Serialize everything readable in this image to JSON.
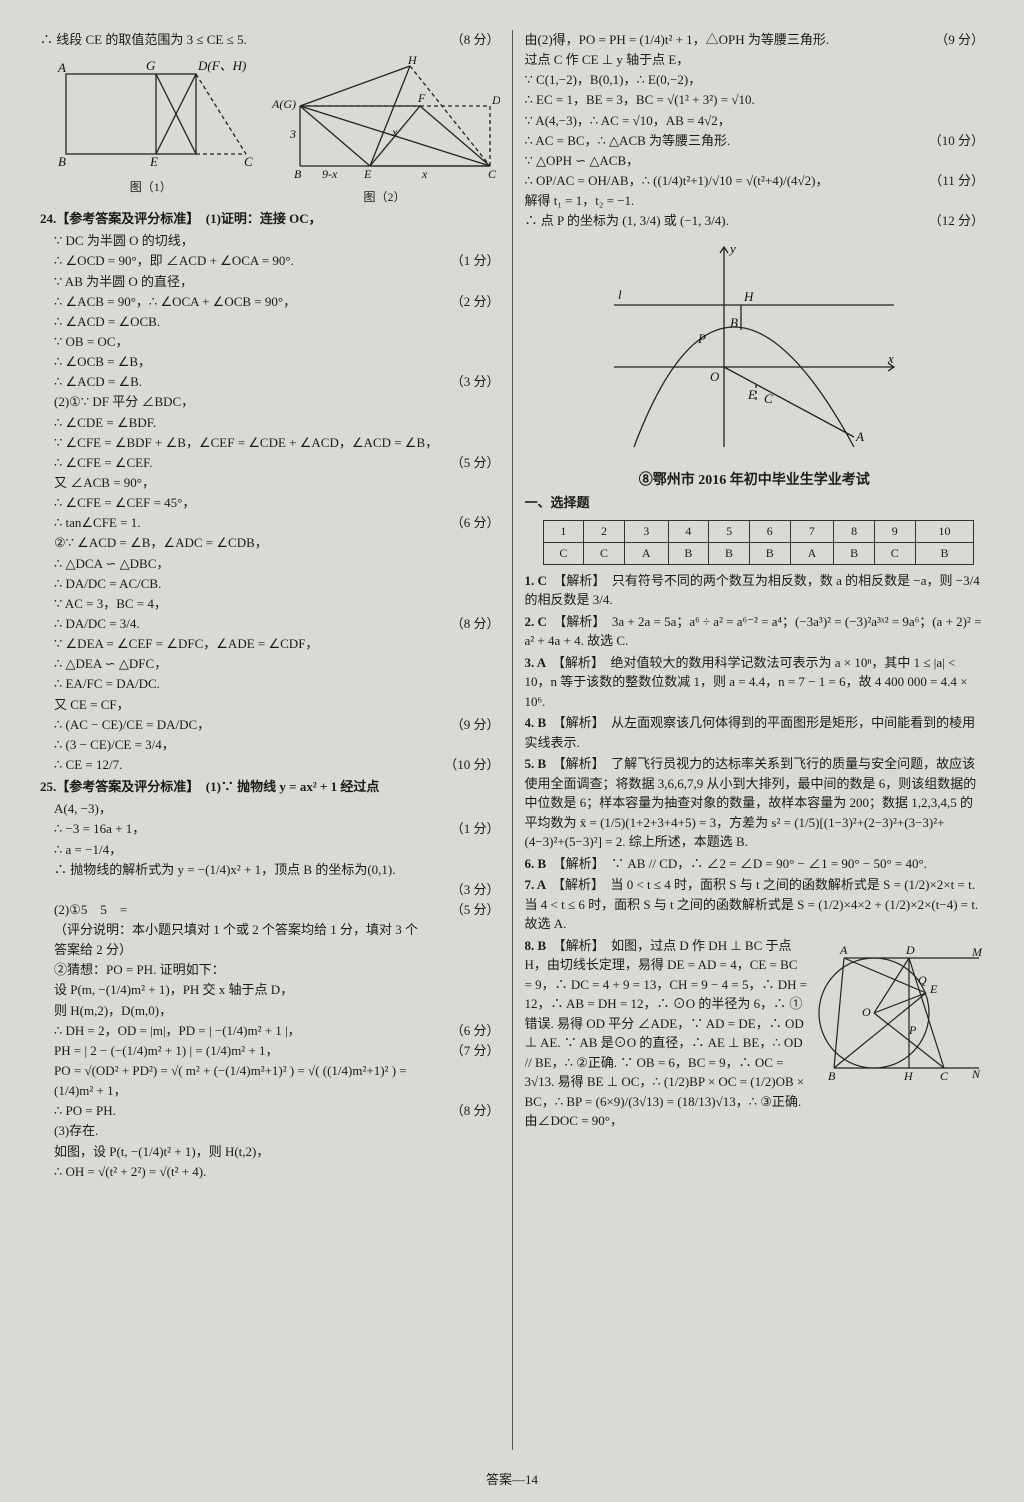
{
  "footer": "答案—14",
  "left": {
    "top_line": "∴ 线段 CE 的取值范围为 3 ≤ CE ≤ 5.",
    "top_score": "（8 分）",
    "fig1": {
      "points": {
        "A": "A",
        "B": "B",
        "C": "C",
        "D": "D(F、H)",
        "E": "E",
        "G": "G"
      },
      "label": "图（1）",
      "stroke": "#222222",
      "dash": "4,3"
    },
    "fig2": {
      "points": {
        "A": "A(G)",
        "B": "B",
        "C": "C",
        "D": "D",
        "E": "E",
        "F": "F",
        "H": "H"
      },
      "seg_labels": {
        "three": "3",
        "nine_minus_x": "9-x",
        "x1": "x",
        "x2": "x"
      },
      "label": "图（2）",
      "stroke": "#222222",
      "dash": "4,3"
    },
    "q24": {
      "head": "24.【参考答案及评分标准】　(1)证明：连接 OC，",
      "lines": [
        {
          "t": "∵ DC 为半圆 O 的切线，",
          "s": ""
        },
        {
          "t": "∴ ∠OCD = 90°，即 ∠ACD + ∠OCA = 90°.",
          "s": "（1 分）"
        },
        {
          "t": "∵ AB 为半圆 O 的直径，",
          "s": ""
        },
        {
          "t": "∴ ∠ACB = 90°，∴ ∠OCA + ∠OCB = 90°，",
          "s": "（2 分）"
        },
        {
          "t": "∴ ∠ACD = ∠OCB.",
          "s": ""
        },
        {
          "t": "∵ OB = OC，",
          "s": ""
        },
        {
          "t": "∴ ∠OCB = ∠B，",
          "s": ""
        },
        {
          "t": "∴ ∠ACD = ∠B.",
          "s": "（3 分）"
        },
        {
          "t": "(2)①∵ DF 平分 ∠BDC，",
          "s": ""
        },
        {
          "t": "∴ ∠CDE = ∠BDF.",
          "s": ""
        },
        {
          "t": "∵ ∠CFE = ∠BDF + ∠B，∠CEF = ∠CDE + ∠ACD，∠ACD = ∠B，",
          "s": ""
        },
        {
          "t": "∴ ∠CFE = ∠CEF.",
          "s": "（5 分）"
        },
        {
          "t": "又 ∠ACB = 90°，",
          "s": ""
        },
        {
          "t": "∴ ∠CFE = ∠CEF = 45°，",
          "s": ""
        },
        {
          "t": "∴ tan∠CFE = 1.",
          "s": "（6 分）"
        },
        {
          "t": "②∵ ∠ACD = ∠B，∠ADC = ∠CDB，",
          "s": ""
        },
        {
          "t": "∴ △DCA ∽ △DBC，",
          "s": ""
        },
        {
          "t": "∴ DA/DC = AC/CB.",
          "s": ""
        },
        {
          "t": "∵ AC = 3，BC = 4，",
          "s": ""
        },
        {
          "t": "∴ DA/DC = 3/4.",
          "s": "（8 分）"
        },
        {
          "t": "∵ ∠DEA = ∠CEF = ∠DFC，∠ADE = ∠CDF，",
          "s": ""
        },
        {
          "t": "∴ △DEA ∽ △DFC，",
          "s": ""
        },
        {
          "t": "∴ EA/FC = DA/DC.",
          "s": ""
        },
        {
          "t": "又 CE = CF，",
          "s": ""
        },
        {
          "t": "∴ (AC − CE)/CE = DA/DC，",
          "s": "（9 分）"
        },
        {
          "t": "∴ (3 − CE)/CE = 3/4，",
          "s": ""
        },
        {
          "t": "∴ CE = 12/7.",
          "s": "（10 分）"
        }
      ]
    },
    "q25": {
      "head": "25.【参考答案及评分标准】　(1)∵ 抛物线 y = ax² + 1 经过点",
      "lines": [
        {
          "t": "A(4, −3)，",
          "s": ""
        },
        {
          "t": "∴ −3 = 16a + 1，",
          "s": "（1 分）"
        },
        {
          "t": "∴ a = −1/4，",
          "s": ""
        },
        {
          "t": "∴ 抛物线的解析式为 y = −(1/4)x² + 1，顶点 B 的坐标为(0,1).",
          "s": ""
        },
        {
          "t": "",
          "s": "（3 分）"
        },
        {
          "t": "(2)①5　5　=",
          "s": "（5 分）"
        },
        {
          "t": "（评分说明：本小题只填对 1 个或 2 个答案均给 1 分，填对 3 个",
          "s": ""
        },
        {
          "t": "答案给 2 分）",
          "s": ""
        },
        {
          "t": "②猜想：PO = PH. 证明如下：",
          "s": ""
        },
        {
          "t": "设 P(m, −(1/4)m² + 1)，PH 交 x 轴于点 D，",
          "s": ""
        },
        {
          "t": "则 H(m,2)，D(m,0)，",
          "s": ""
        },
        {
          "t": "∴ DH = 2，OD = |m|，PD = | −(1/4)m² + 1 |，",
          "s": "（6 分）"
        },
        {
          "t": "PH = | 2 − (−(1/4)m² + 1) | = (1/4)m² + 1，",
          "s": "（7 分）"
        },
        {
          "t": "PO = √(OD² + PD²) = √( m² + (−(1/4)m²+1)² ) = √( ((1/4)m²+1)² ) =",
          "s": ""
        },
        {
          "t": "(1/4)m² + 1，",
          "s": ""
        },
        {
          "t": "∴ PO = PH.",
          "s": "（8 分）"
        },
        {
          "t": "(3)存在.",
          "s": ""
        },
        {
          "t": "如图，设 P(t, −(1/4)t² + 1)，则 H(t,2)，",
          "s": ""
        },
        {
          "t": "∴ OH = √(t² + 2²) = √(t² + 4).",
          "s": ""
        }
      ]
    }
  },
  "right": {
    "top_lines": [
      {
        "t": "由(2)得，PO = PH = (1/4)t² + 1，△OPH 为等腰三角形.",
        "s": "（9 分）"
      },
      {
        "t": "过点 C 作 CE ⊥ y 轴于点 E，",
        "s": ""
      },
      {
        "t": "∵ C(1,−2)，B(0,1)，∴ E(0,−2)，",
        "s": ""
      },
      {
        "t": "∴ EC = 1，BE = 3，BC = √(1² + 3²) = √10.",
        "s": ""
      },
      {
        "t": "∵ A(4,−3)，∴ AC = √10，AB = 4√2，",
        "s": ""
      },
      {
        "t": "∴ AC = BC，∴ △ACB 为等腰三角形.",
        "s": "（10 分）"
      },
      {
        "t": "∵ △OPH ∽ △ACB，",
        "s": ""
      },
      {
        "t": "∴ OP/AC = OH/AB，∴ ((1/4)t²+1)/√10 = √(t²+4)/(4√2)，",
        "s": "（11 分）"
      },
      {
        "t": "解得 t₁ = 1，t₂ = −1.",
        "s": ""
      },
      {
        "t": "∴ 点 P 的坐标为 (1, 3/4) 或 (−1, 3/4).",
        "s": "（12 分）"
      }
    ],
    "parabola_fig": {
      "labels": {
        "l": "l",
        "H": "H",
        "B": "B",
        "P": "P",
        "O": "O",
        "E": "E",
        "C": "C",
        "A": "A",
        "x": "x",
        "y": "y"
      },
      "stroke": "#222222"
    },
    "exam_title": "⑧鄂州市 2016 年初中毕业生学业考试",
    "section1": "一、选择题",
    "answer_table": {
      "nums": [
        "1",
        "2",
        "3",
        "4",
        "5",
        "6",
        "7",
        "8",
        "9",
        "10"
      ],
      "vals": [
        "C",
        "C",
        "A",
        "B",
        "B",
        "B",
        "A",
        "B",
        "C",
        "B"
      ]
    },
    "analyses": [
      {
        "n": "1. C",
        "t": "【解析】　只有符号不同的两个数互为相反数，数 a 的相反数是 −a，则 −3/4 的相反数是 3/4."
      },
      {
        "n": "2. C",
        "t": "【解析】　3a + 2a = 5a；a⁶ ÷ a² = a⁶⁻² = a⁴；(−3a³)² = (−3)²a³ˣ² = 9a⁶；(a + 2)² = a² + 4a + 4. 故选 C."
      },
      {
        "n": "3. A",
        "t": "【解析】　绝对值较大的数用科学记数法可表示为 a × 10ⁿ，其中 1 ≤ |a| < 10，n 等于该数的整数位数减 1，则 a = 4.4，n = 7 − 1 = 6，故 4 400 000 = 4.4 × 10⁶."
      },
      {
        "n": "4. B",
        "t": "【解析】　从左面观察该几何体得到的平面图形是矩形，中间能看到的棱用实线表示."
      },
      {
        "n": "5. B",
        "t": "【解析】　了解飞行员视力的达标率关系到飞行的质量与安全问题，故应该使用全面调查；将数据 3,6,6,7,9 从小到大排列，最中间的数是 6，则该组数据的中位数是 6；样本容量为抽查对象的数量，故样本容量为 200；数据 1,2,3,4,5 的平均数为 x̄ = (1/5)(1+2+3+4+5) = 3，方差为 s² = (1/5)[(1−3)²+(2−3)²+(3−3)²+(4−3)²+(5−3)²] = 2. 综上所述，本题选 B."
      },
      {
        "n": "6. B",
        "t": "【解析】　∵ AB // CD，∴ ∠2 = ∠D = 90° − ∠1 = 90° − 50° = 40°."
      },
      {
        "n": "7. A",
        "t": "【解析】　当 0 < t ≤ 4 时，面积 S 与 t 之间的函数解析式是 S = (1/2)×2×t = t. 当 4 < t ≤ 6 时，面积 S 与 t 之间的函数解析式是 S = (1/2)×4×2 + (1/2)×2×(t−4) = t. 故选 A."
      },
      {
        "n": "8. B",
        "t": "【解析】　如图，过点 D 作 DH ⊥ BC 于点 H，由切线长定理，易得 DE = AD = 4，CE = BC = 9，∴ DC = 4 + 9 = 13，CH = 9 − 4 = 5，∴ DH = 12，∴ AB = DH = 12，∴ ⊙O 的半径为 6，∴ ①错误. 易得 OD 平分 ∠ADE，∵ AD = DE，∴ OD ⊥ AE. ∵ AB 是⊙O 的直径，∴ AE ⊥ BE，∴ OD // BE，∴ ②正确. ∵ OB = 6，BC = 9，∴ OC = 3√13. 易得 BE ⊥ OC，∴ (1/2)BP × OC = (1/2)OB × BC，∴ BP = (6×9)/(3√13) = (18/13)√13，∴ ③正确. 由∠DOC = 90°，"
      }
    ],
    "q8_fig": {
      "labels": {
        "A": "A",
        "B": "B",
        "C": "C",
        "D": "D",
        "E": "E",
        "M": "M",
        "N": "N",
        "O": "O",
        "P": "P",
        "Q": "Q",
        "H": "H"
      },
      "stroke": "#222222"
    }
  }
}
